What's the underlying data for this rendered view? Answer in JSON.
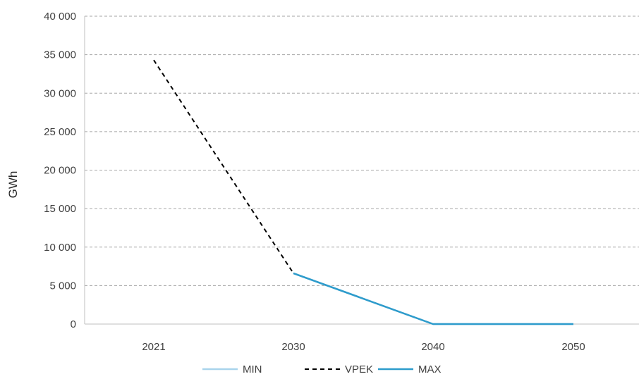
{
  "chart_data": {
    "type": "line",
    "title": "",
    "xlabel": "",
    "ylabel": "GWh",
    "x": [
      "2021",
      "2030",
      "2040",
      "2050"
    ],
    "ylim": [
      0,
      40000
    ],
    "y_ticks": [
      0,
      5000,
      10000,
      15000,
      20000,
      25000,
      30000,
      35000,
      40000
    ],
    "y_tick_labels": [
      "0",
      "5 000",
      "10 000",
      "15 000",
      "20 000",
      "25 000",
      "30 000",
      "35 000",
      "40 000"
    ],
    "grid": "horizontal-dashed",
    "legend_position": "bottom",
    "series": [
      {
        "name": "MIN",
        "values": [
          null,
          6600,
          0,
          0
        ],
        "color": "#a9d4ec",
        "style": "solid"
      },
      {
        "name": "VPEK",
        "values": [
          34300,
          6600,
          0,
          0
        ],
        "color": "#000000",
        "style": "dashed"
      },
      {
        "name": "MAX",
        "values": [
          null,
          6600,
          0,
          0
        ],
        "color": "#2e9ccc",
        "style": "solid"
      }
    ]
  }
}
